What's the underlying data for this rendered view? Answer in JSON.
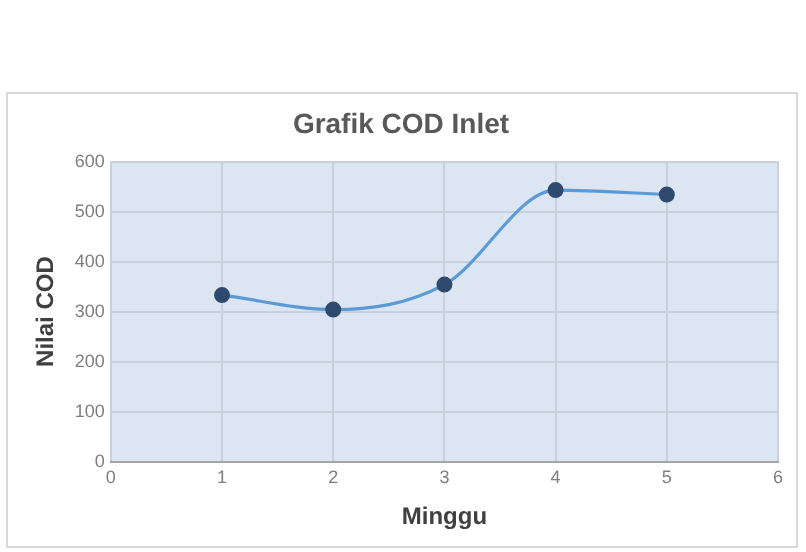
{
  "chart_data": {
    "type": "line",
    "title": "Grafik COD Inlet",
    "xlabel": "Minggu",
    "ylabel": "Nilai COD",
    "x": [
      1,
      2,
      3,
      4,
      5
    ],
    "series": [
      {
        "color": "#5b9bd5",
        "values": [
          333,
          304,
          354,
          543,
          534
        ]
      }
    ],
    "xlim": [
      0,
      6
    ],
    "xticks": [
      0,
      1,
      2,
      3,
      4,
      5,
      6
    ],
    "ylim": [
      0,
      600
    ],
    "yticks": [
      0,
      100,
      200,
      300,
      400,
      500,
      600
    ],
    "grid": true,
    "legend": false,
    "marker": "circle",
    "line_style": "solid"
  }
}
